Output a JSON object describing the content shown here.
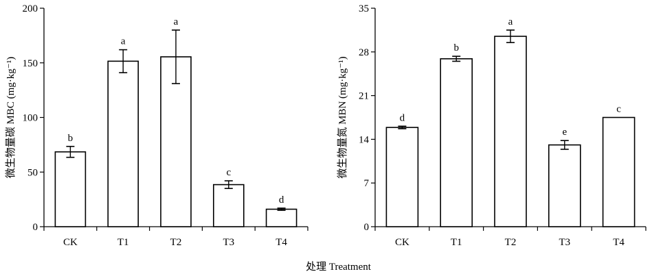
{
  "figure": {
    "common_xlabel": "处理 Treatment"
  },
  "chart_data": [
    {
      "type": "bar",
      "title": "",
      "xlabel": "",
      "ylabel": "微生物量碳 MBC (mg·kg⁻¹)",
      "categories": [
        "CK",
        "T1",
        "T2",
        "T3",
        "T4"
      ],
      "values": [
        68.5,
        151.5,
        155.5,
        38.5,
        16
      ],
      "errors": [
        5,
        10.5,
        24.5,
        3.5,
        1
      ],
      "letters": [
        "b",
        "a",
        "a",
        "c",
        "d"
      ],
      "ylim": [
        0,
        200
      ],
      "yticks": [
        0,
        50,
        100,
        150,
        200
      ],
      "grid": false
    },
    {
      "type": "bar",
      "title": "",
      "xlabel": "",
      "ylabel": "微生物量氮 MBN (mg·kg⁻¹)",
      "categories": [
        "CK",
        "T1",
        "T2",
        "T3",
        "T4"
      ],
      "values": [
        15.9,
        26.9,
        30.5,
        13.1,
        17.5
      ],
      "errors": [
        0.2,
        0.4,
        1.0,
        0.7,
        0
      ],
      "letters": [
        "d",
        "b",
        "a",
        "e",
        "c"
      ],
      "ylim": [
        0,
        35
      ],
      "yticks": [
        0,
        7,
        14,
        21,
        28,
        35
      ],
      "grid": false
    }
  ]
}
